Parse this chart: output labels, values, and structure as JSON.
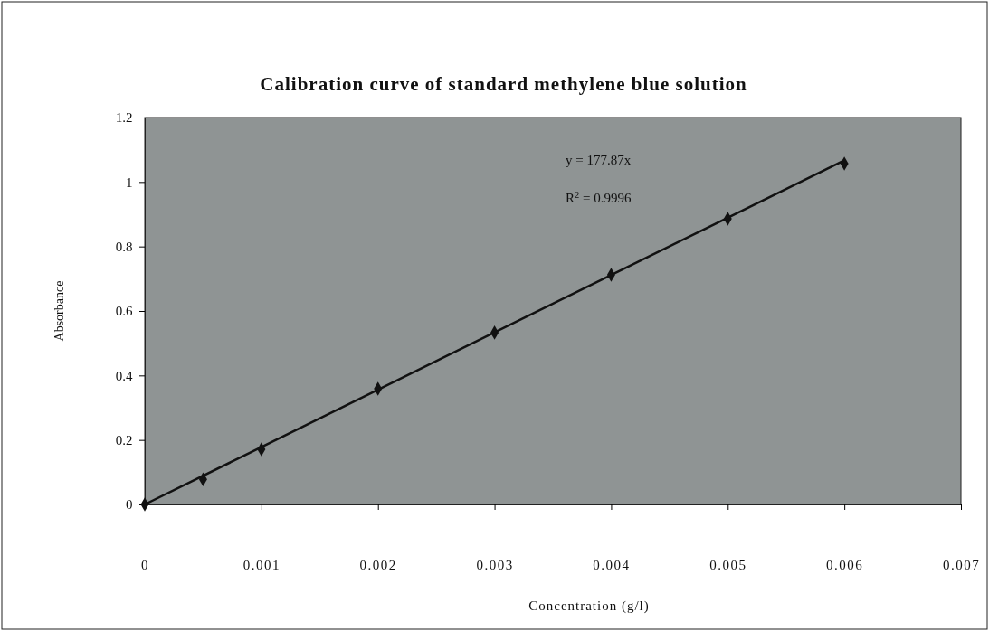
{
  "chart_data": {
    "type": "scatter",
    "title": "Calibration curve of standard methylene blue solution",
    "xlabel": "Concentration (g/l)",
    "ylabel": "Absorbance",
    "series": [
      {
        "type": "scatter",
        "color": "#111111",
        "marker": "diamond",
        "x": [
          0,
          0.0005,
          0.001,
          0.002,
          0.003,
          0.004,
          0.005,
          0.006
        ],
        "values": [
          0,
          0.078,
          0.171,
          0.359,
          0.533,
          0.712,
          0.886,
          1.057
        ]
      },
      {
        "type": "line",
        "color": "#111111",
        "marker": "none",
        "line_style": "solid",
        "x": [
          0,
          0.006
        ],
        "values": [
          0,
          1.067
        ]
      }
    ],
    "xlim": [
      0,
      0.007
    ],
    "xticks": [
      0,
      0.001,
      0.002,
      0.003,
      0.004,
      0.005,
      0.006,
      0.007
    ],
    "ylim": [
      0,
      1.2
    ],
    "yticks": [
      0,
      0.2,
      0.4,
      0.6,
      0.8,
      1,
      1.2
    ],
    "annotations": [
      "y = 177.87x",
      "R$^{2}$ = 0.9996"
    ],
    "grid": false
  }
}
